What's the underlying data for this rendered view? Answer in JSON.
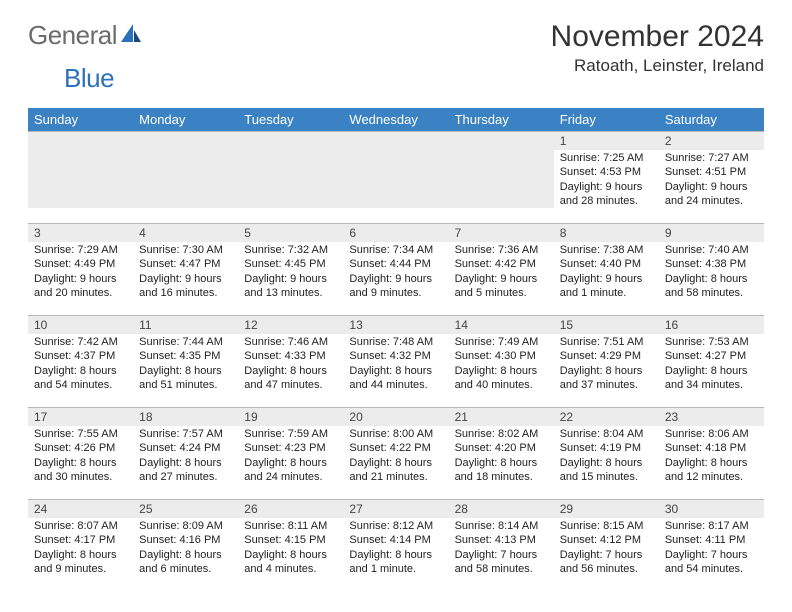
{
  "logo": {
    "word1": "General",
    "word2": "Blue"
  },
  "title": "November 2024",
  "location": "Ratoath, Leinster, Ireland",
  "header_bg": "#3b82c4",
  "daynum_bg": "#ececec",
  "dayNames": [
    "Sunday",
    "Monday",
    "Tuesday",
    "Wednesday",
    "Thursday",
    "Friday",
    "Saturday"
  ],
  "weeks": [
    [
      {
        "n": "",
        "sr": "",
        "ss": "",
        "d1": "",
        "d2": ""
      },
      {
        "n": "",
        "sr": "",
        "ss": "",
        "d1": "",
        "d2": ""
      },
      {
        "n": "",
        "sr": "",
        "ss": "",
        "d1": "",
        "d2": ""
      },
      {
        "n": "",
        "sr": "",
        "ss": "",
        "d1": "",
        "d2": ""
      },
      {
        "n": "",
        "sr": "",
        "ss": "",
        "d1": "",
        "d2": ""
      },
      {
        "n": "1",
        "sr": "Sunrise: 7:25 AM",
        "ss": "Sunset: 4:53 PM",
        "d1": "Daylight: 9 hours",
        "d2": "and 28 minutes."
      },
      {
        "n": "2",
        "sr": "Sunrise: 7:27 AM",
        "ss": "Sunset: 4:51 PM",
        "d1": "Daylight: 9 hours",
        "d2": "and 24 minutes."
      }
    ],
    [
      {
        "n": "3",
        "sr": "Sunrise: 7:29 AM",
        "ss": "Sunset: 4:49 PM",
        "d1": "Daylight: 9 hours",
        "d2": "and 20 minutes."
      },
      {
        "n": "4",
        "sr": "Sunrise: 7:30 AM",
        "ss": "Sunset: 4:47 PM",
        "d1": "Daylight: 9 hours",
        "d2": "and 16 minutes."
      },
      {
        "n": "5",
        "sr": "Sunrise: 7:32 AM",
        "ss": "Sunset: 4:45 PM",
        "d1": "Daylight: 9 hours",
        "d2": "and 13 minutes."
      },
      {
        "n": "6",
        "sr": "Sunrise: 7:34 AM",
        "ss": "Sunset: 4:44 PM",
        "d1": "Daylight: 9 hours",
        "d2": "and 9 minutes."
      },
      {
        "n": "7",
        "sr": "Sunrise: 7:36 AM",
        "ss": "Sunset: 4:42 PM",
        "d1": "Daylight: 9 hours",
        "d2": "and 5 minutes."
      },
      {
        "n": "8",
        "sr": "Sunrise: 7:38 AM",
        "ss": "Sunset: 4:40 PM",
        "d1": "Daylight: 9 hours",
        "d2": "and 1 minute."
      },
      {
        "n": "9",
        "sr": "Sunrise: 7:40 AM",
        "ss": "Sunset: 4:38 PM",
        "d1": "Daylight: 8 hours",
        "d2": "and 58 minutes."
      }
    ],
    [
      {
        "n": "10",
        "sr": "Sunrise: 7:42 AM",
        "ss": "Sunset: 4:37 PM",
        "d1": "Daylight: 8 hours",
        "d2": "and 54 minutes."
      },
      {
        "n": "11",
        "sr": "Sunrise: 7:44 AM",
        "ss": "Sunset: 4:35 PM",
        "d1": "Daylight: 8 hours",
        "d2": "and 51 minutes."
      },
      {
        "n": "12",
        "sr": "Sunrise: 7:46 AM",
        "ss": "Sunset: 4:33 PM",
        "d1": "Daylight: 8 hours",
        "d2": "and 47 minutes."
      },
      {
        "n": "13",
        "sr": "Sunrise: 7:48 AM",
        "ss": "Sunset: 4:32 PM",
        "d1": "Daylight: 8 hours",
        "d2": "and 44 minutes."
      },
      {
        "n": "14",
        "sr": "Sunrise: 7:49 AM",
        "ss": "Sunset: 4:30 PM",
        "d1": "Daylight: 8 hours",
        "d2": "and 40 minutes."
      },
      {
        "n": "15",
        "sr": "Sunrise: 7:51 AM",
        "ss": "Sunset: 4:29 PM",
        "d1": "Daylight: 8 hours",
        "d2": "and 37 minutes."
      },
      {
        "n": "16",
        "sr": "Sunrise: 7:53 AM",
        "ss": "Sunset: 4:27 PM",
        "d1": "Daylight: 8 hours",
        "d2": "and 34 minutes."
      }
    ],
    [
      {
        "n": "17",
        "sr": "Sunrise: 7:55 AM",
        "ss": "Sunset: 4:26 PM",
        "d1": "Daylight: 8 hours",
        "d2": "and 30 minutes."
      },
      {
        "n": "18",
        "sr": "Sunrise: 7:57 AM",
        "ss": "Sunset: 4:24 PM",
        "d1": "Daylight: 8 hours",
        "d2": "and 27 minutes."
      },
      {
        "n": "19",
        "sr": "Sunrise: 7:59 AM",
        "ss": "Sunset: 4:23 PM",
        "d1": "Daylight: 8 hours",
        "d2": "and 24 minutes."
      },
      {
        "n": "20",
        "sr": "Sunrise: 8:00 AM",
        "ss": "Sunset: 4:22 PM",
        "d1": "Daylight: 8 hours",
        "d2": "and 21 minutes."
      },
      {
        "n": "21",
        "sr": "Sunrise: 8:02 AM",
        "ss": "Sunset: 4:20 PM",
        "d1": "Daylight: 8 hours",
        "d2": "and 18 minutes."
      },
      {
        "n": "22",
        "sr": "Sunrise: 8:04 AM",
        "ss": "Sunset: 4:19 PM",
        "d1": "Daylight: 8 hours",
        "d2": "and 15 minutes."
      },
      {
        "n": "23",
        "sr": "Sunrise: 8:06 AM",
        "ss": "Sunset: 4:18 PM",
        "d1": "Daylight: 8 hours",
        "d2": "and 12 minutes."
      }
    ],
    [
      {
        "n": "24",
        "sr": "Sunrise: 8:07 AM",
        "ss": "Sunset: 4:17 PM",
        "d1": "Daylight: 8 hours",
        "d2": "and 9 minutes."
      },
      {
        "n": "25",
        "sr": "Sunrise: 8:09 AM",
        "ss": "Sunset: 4:16 PM",
        "d1": "Daylight: 8 hours",
        "d2": "and 6 minutes."
      },
      {
        "n": "26",
        "sr": "Sunrise: 8:11 AM",
        "ss": "Sunset: 4:15 PM",
        "d1": "Daylight: 8 hours",
        "d2": "and 4 minutes."
      },
      {
        "n": "27",
        "sr": "Sunrise: 8:12 AM",
        "ss": "Sunset: 4:14 PM",
        "d1": "Daylight: 8 hours",
        "d2": "and 1 minute."
      },
      {
        "n": "28",
        "sr": "Sunrise: 8:14 AM",
        "ss": "Sunset: 4:13 PM",
        "d1": "Daylight: 7 hours",
        "d2": "and 58 minutes."
      },
      {
        "n": "29",
        "sr": "Sunrise: 8:15 AM",
        "ss": "Sunset: 4:12 PM",
        "d1": "Daylight: 7 hours",
        "d2": "and 56 minutes."
      },
      {
        "n": "30",
        "sr": "Sunrise: 8:17 AM",
        "ss": "Sunset: 4:11 PM",
        "d1": "Daylight: 7 hours",
        "d2": "and 54 minutes."
      }
    ]
  ]
}
